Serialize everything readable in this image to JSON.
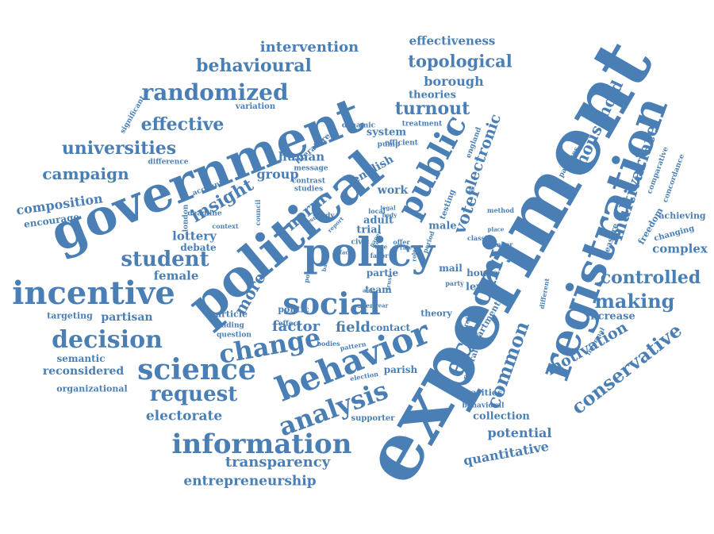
{
  "colors": {
    "word": "#4a7fb5",
    "background": "#ffffff"
  },
  "words": [
    {
      "text": "experiment",
      "weight": 100
    },
    {
      "text": "government",
      "weight": 68
    },
    {
      "text": "political",
      "weight": 66
    },
    {
      "text": "registration",
      "weight": 54
    },
    {
      "text": "policy",
      "weight": 52
    },
    {
      "text": "public",
      "weight": 44
    },
    {
      "text": "behavior",
      "weight": 42
    },
    {
      "text": "incentive",
      "weight": 40
    },
    {
      "text": "social",
      "weight": 40
    },
    {
      "text": "science",
      "weight": 38
    },
    {
      "text": "economy",
      "weight": 38
    },
    {
      "text": "information",
      "weight": 36
    },
    {
      "text": "analysis",
      "weight": 36
    },
    {
      "text": "change",
      "weight": 34
    },
    {
      "text": "decision",
      "weight": 32
    },
    {
      "text": "randomized",
      "weight": 30
    },
    {
      "text": "student",
      "weight": 28
    },
    {
      "text": "request",
      "weight": 28
    },
    {
      "text": "conservative",
      "weight": 28
    },
    {
      "text": "common",
      "weight": 28
    },
    {
      "text": "making",
      "weight": 26
    },
    {
      "text": "multivariate",
      "weight": 26
    },
    {
      "text": "controlled",
      "weight": 26
    },
    {
      "text": "household",
      "weight": 24
    },
    {
      "text": "insight",
      "weight": 24
    },
    {
      "text": "behavioural",
      "weight": 24
    },
    {
      "text": "universities",
      "weight": 24
    },
    {
      "text": "turnout",
      "weight": 24
    },
    {
      "text": "topological",
      "weight": 24
    },
    {
      "text": "effective",
      "weight": 24
    },
    {
      "text": "voter",
      "weight": 24
    },
    {
      "text": "electronic",
      "weight": 22
    },
    {
      "text": "campaign",
      "weight": 22
    },
    {
      "text": "motivation",
      "weight": 22
    },
    {
      "text": "norm",
      "weight": 22
    },
    {
      "text": "more",
      "weight": 22
    },
    {
      "text": "intervention",
      "weight": 20
    },
    {
      "text": "factor",
      "weight": 20
    },
    {
      "text": "field",
      "weight": 20
    },
    {
      "text": "transparency",
      "weight": 20
    },
    {
      "text": "entrepreneurship",
      "weight": 18
    },
    {
      "text": "electorate",
      "weight": 18
    },
    {
      "text": "potential",
      "weight": 18
    },
    {
      "text": "quantitative",
      "weight": 18
    },
    {
      "text": "composition",
      "weight": 18
    },
    {
      "text": "group",
      "weight": 18
    },
    {
      "text": "borough",
      "weight": 18
    },
    {
      "text": "complex",
      "weight": 18
    },
    {
      "text": "female",
      "weight": 16
    },
    {
      "text": "effectiveness",
      "weight": 16
    },
    {
      "text": "human",
      "weight": 16
    },
    {
      "text": "lottery",
      "weight": 16
    },
    {
      "text": "partisan",
      "weight": 16
    },
    {
      "text": "reconsidered",
      "weight": 16
    },
    {
      "text": "work",
      "weight": 16
    },
    {
      "text": "english",
      "weight": 16
    },
    {
      "text": "theories",
      "weight": 14
    },
    {
      "text": "increase",
      "weight": 14
    },
    {
      "text": "level",
      "weight": 14
    },
    {
      "text": "system",
      "weight": 14
    },
    {
      "text": "adult",
      "weight": 14
    },
    {
      "text": "trial",
      "weight": 14
    },
    {
      "text": "male",
      "weight": 14
    },
    {
      "text": "team",
      "weight": 14
    },
    {
      "text": "mail",
      "weight": 14
    },
    {
      "text": "partie",
      "weight": 14
    },
    {
      "text": "contact",
      "weight": 14
    },
    {
      "text": "parish",
      "weight": 14
    },
    {
      "text": "house",
      "weight": 14
    },
    {
      "text": "encourage",
      "weight": 14
    },
    {
      "text": "collection",
      "weight": 14
    },
    {
      "text": "department",
      "weight": 13
    },
    {
      "text": "semantic",
      "weight": 13
    },
    {
      "text": "organizational",
      "weight": 13
    },
    {
      "text": "targeting",
      "weight": 13
    },
    {
      "text": "charities",
      "weight": 13
    },
    {
      "text": "debate",
      "weight": 13
    },
    {
      "text": "article",
      "weight": 13
    },
    {
      "text": "theory",
      "weight": 13
    },
    {
      "text": "measure",
      "weight": 12
    },
    {
      "text": "achieving",
      "weight": 12
    },
    {
      "text": "freedom",
      "weight": 12
    },
    {
      "text": "changing",
      "weight": 12
    },
    {
      "text": "literature",
      "weight": 12
    },
    {
      "text": "politic",
      "weight": 12
    },
    {
      "text": "supporter",
      "weight": 11
    },
    {
      "text": "variation",
      "weight": 11
    },
    {
      "text": "testing",
      "weight": 11
    },
    {
      "text": "central",
      "weight": 11
    },
    {
      "text": "comparative",
      "weight": 11
    },
    {
      "text": "concordance",
      "weight": 11
    },
    {
      "text": "london",
      "weight": 11
    },
    {
      "text": "efficient",
      "weight": 11
    },
    {
      "text": "treatment",
      "weight": 10
    },
    {
      "text": "behavioral",
      "weight": 10
    },
    {
      "text": "significant",
      "weight": 10
    },
    {
      "text": "difference",
      "weight": 10
    },
    {
      "text": "account",
      "weight": 10
    },
    {
      "text": "deadline",
      "weight": 10
    },
    {
      "text": "finding",
      "weight": 10
    },
    {
      "text": "question",
      "weight": 10
    },
    {
      "text": "message",
      "weight": 10
    },
    {
      "text": "effect",
      "weight": 10
    },
    {
      "text": "contrast",
      "weight": 10
    },
    {
      "text": "studies",
      "weight": 10
    },
    {
      "text": "study",
      "weight": 10
    },
    {
      "text": "civic",
      "weight": 10
    },
    {
      "text": "england",
      "weight": 10
    },
    {
      "text": "parishes",
      "weight": 10
    },
    {
      "text": "pump",
      "weight": 10
    },
    {
      "text": "dynamic",
      "weight": 10
    },
    {
      "text": "offer",
      "weight": 10
    },
    {
      "text": "party",
      "weight": 10
    },
    {
      "text": "member",
      "weight": 10
    },
    {
      "text": "control",
      "weight": 10
    },
    {
      "text": "different",
      "weight": 10
    },
    {
      "text": "informal",
      "weight": 9
    },
    {
      "text": "classic",
      "weight": 9
    },
    {
      "text": "method",
      "weight": 9
    },
    {
      "text": "context",
      "weight": 9
    },
    {
      "text": "council",
      "weight": 9
    },
    {
      "text": "period",
      "weight": 9
    },
    {
      "text": "power",
      "weight": 9
    },
    {
      "text": "bodies",
      "weight": 9
    },
    {
      "text": "local",
      "weight": 9
    },
    {
      "text": "election",
      "weight": 9
    },
    {
      "text": "agent",
      "weight": 9
    },
    {
      "text": "pattern",
      "weight": 9
    },
    {
      "text": "favor",
      "weight": 9
    },
    {
      "text": "place",
      "weight": 8
    },
    {
      "text": "ballot",
      "weight": 8
    },
    {
      "text": "result",
      "weight": 8
    },
    {
      "text": "report",
      "weight": 8
    },
    {
      "text": "face",
      "weight": 8
    },
    {
      "text": "paper",
      "weight": 8
    },
    {
      "text": "vote",
      "weight": 8
    },
    {
      "text": "fee",
      "weight": 8
    },
    {
      "text": "legal",
      "weight": 8
    },
    {
      "text": "body",
      "weight": 8
    },
    {
      "text": "rate",
      "weight": 8
    },
    {
      "text": "role",
      "weight": 8
    },
    {
      "text": "aid",
      "weight": 8
    },
    {
      "text": "trust",
      "weight": 8
    },
    {
      "text": "year",
      "weight": 8
    }
  ]
}
